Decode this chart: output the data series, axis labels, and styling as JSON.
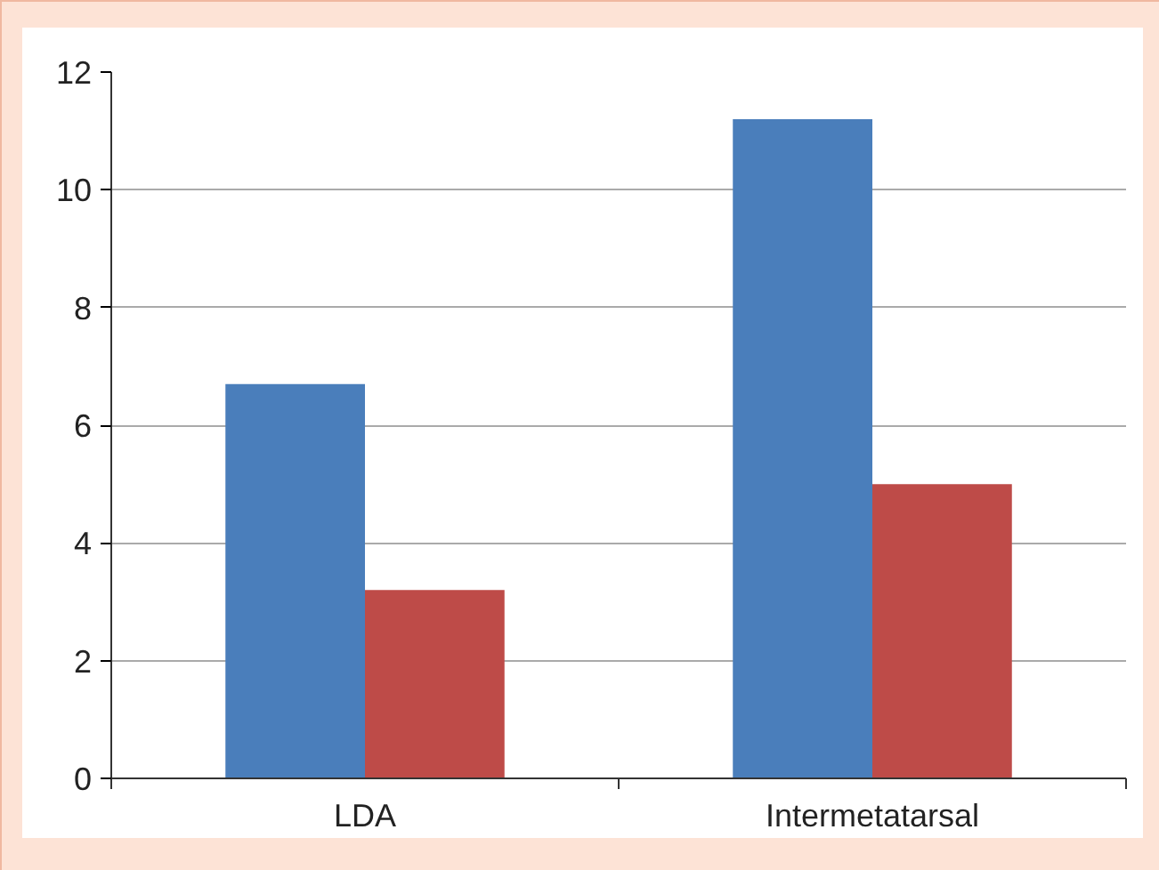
{
  "chart_data": {
    "type": "bar",
    "categories": [
      "LDA",
      "Intermetatarsal"
    ],
    "series": [
      {
        "color": "#4a7ebb",
        "values": [
          6.7,
          11.2
        ]
      },
      {
        "color": "#be4b48",
        "values": [
          3.2,
          5.0
        ]
      }
    ],
    "ylim": [
      0,
      12
    ],
    "yticks": [
      0,
      2,
      4,
      6,
      8,
      10,
      12
    ],
    "grid": "y"
  }
}
